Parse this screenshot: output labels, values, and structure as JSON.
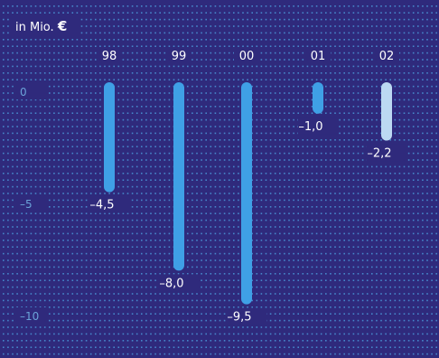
{
  "chart_data": {
    "type": "bar",
    "unit_label": "in Mio.",
    "unit_symbol": "€",
    "categories": [
      "98",
      "99",
      "00",
      "01",
      "02"
    ],
    "values": [
      -4.5,
      -8.0,
      -9.5,
      -1.0,
      -2.2
    ],
    "value_labels": [
      "–4,5",
      "–8,0",
      "–9,5",
      "–1,0",
      "–2,2"
    ],
    "yticks": [
      0,
      -5,
      -10
    ],
    "ytick_labels": [
      "0",
      "–5",
      "–10"
    ],
    "ylim": [
      -11.2,
      1.2
    ],
    "grid": true,
    "colors": {
      "background": "#2f2a7c",
      "grid_dot": "#4fa6e4",
      "bar": "#3fa0e6",
      "bar_highlight": "#bcd9f2",
      "text": "#ffffff",
      "tick_text": "#6aa3d8"
    },
    "highlight_index": 4
  }
}
